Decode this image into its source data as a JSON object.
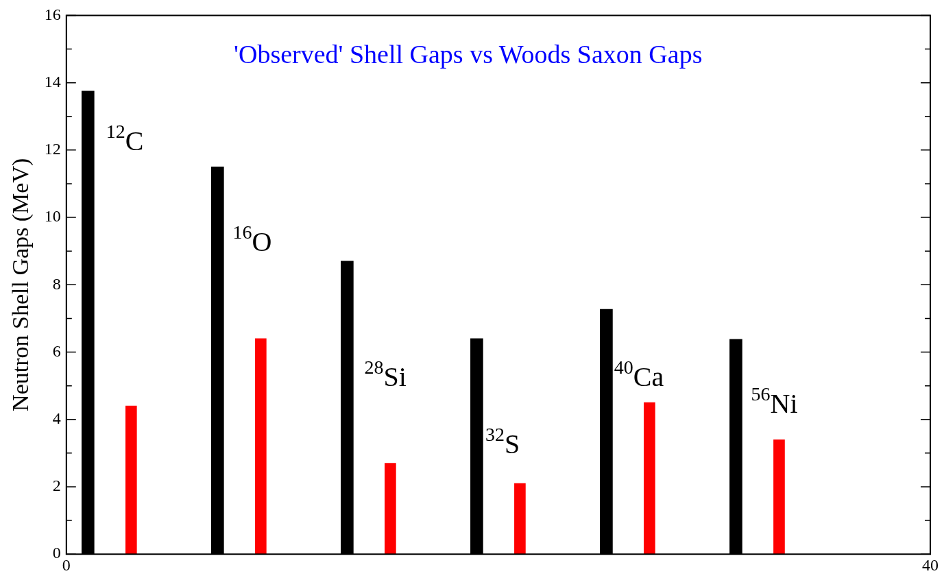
{
  "chart_data": {
    "type": "bar",
    "title": "'Observed' Shell Gaps vs Woods Saxon Gaps",
    "ylabel": "Neutron Shell Gaps (MeV)",
    "series": [
      {
        "color": "#000000",
        "x": [
          1,
          7,
          13,
          19,
          25,
          31
        ],
        "values": [
          13.75,
          11.5,
          8.7,
          6.4,
          7.27,
          6.38
        ]
      },
      {
        "color": "#ff0000",
        "x": [
          3,
          9,
          15,
          21,
          27,
          33
        ],
        "values": [
          4.4,
          6.4,
          2.7,
          2.1,
          4.5,
          3.4
        ]
      }
    ],
    "xlim": [
      0,
      40
    ],
    "xticks": [
      0,
      40
    ],
    "ylim": [
      0,
      16
    ],
    "yticks": [
      0,
      {
        "value": 1,
        "label": null
      },
      2,
      {
        "value": 3,
        "label": null
      },
      4,
      {
        "value": 5,
        "label": null
      },
      6,
      {
        "value": 7,
        "label": null
      },
      8,
      {
        "value": 9,
        "label": null
      },
      10,
      {
        "value": 11,
        "label": null
      },
      12,
      {
        "value": 13,
        "label": null
      },
      14,
      {
        "value": 15,
        "label": null
      },
      16
    ],
    "annotations": [
      "$^{12}$C",
      "$^{16}$O",
      "$^{28}$Si",
      "$^{32}$S",
      "$^{40}$Ca",
      "$^{56}$Ni"
    ],
    "grid": false,
    "legend": false
  }
}
